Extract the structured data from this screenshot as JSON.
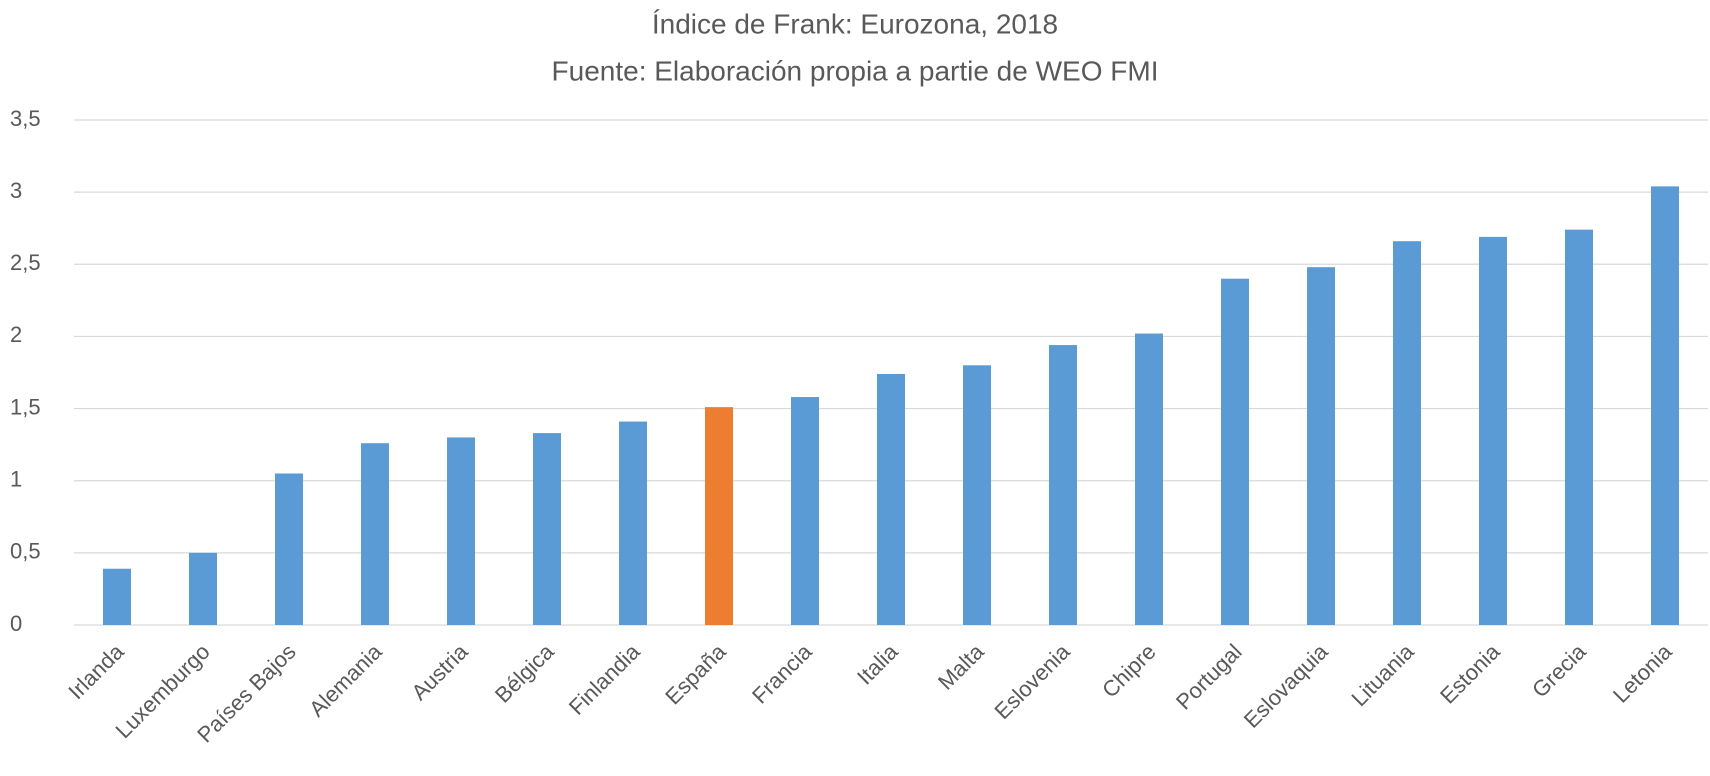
{
  "chart_data": {
    "type": "bar",
    "title": "Índice de Frank: Eurozona, 2018",
    "subtitle": "Fuente: Elaboración propia a partie de WEO FMI",
    "categories": [
      "Irlanda",
      "Luxemburgo",
      "Países Bajos",
      "Alemania",
      "Austria",
      "Bélgica",
      "Finlandia",
      "España",
      "Francia",
      "Italia",
      "Malta",
      "Eslovenia",
      "Chipre",
      "Portugal",
      "Eslovaquia",
      "Lituania",
      "Estonia",
      "Grecia",
      "Letonia"
    ],
    "values": [
      0.39,
      0.5,
      1.05,
      1.26,
      1.3,
      1.33,
      1.41,
      1.51,
      1.58,
      1.74,
      1.8,
      1.94,
      2.02,
      2.4,
      2.48,
      2.66,
      2.69,
      2.74,
      3.04
    ],
    "colors": [
      "#5b9bd5",
      "#5b9bd5",
      "#5b9bd5",
      "#5b9bd5",
      "#5b9bd5",
      "#5b9bd5",
      "#5b9bd5",
      "#ed7d31",
      "#5b9bd5",
      "#5b9bd5",
      "#5b9bd5",
      "#5b9bd5",
      "#5b9bd5",
      "#5b9bd5",
      "#5b9bd5",
      "#5b9bd5",
      "#5b9bd5",
      "#5b9bd5",
      "#5b9bd5"
    ],
    "ylim": [
      0,
      3.5
    ],
    "yticks": [
      0,
      {
        "value": 0.5,
        "label": "0,5"
      },
      1,
      {
        "value": 1.5,
        "label": "1,5"
      },
      2,
      {
        "value": 2.5,
        "label": "2,5"
      },
      3,
      {
        "value": 3.5,
        "label": "3,5"
      }
    ],
    "grid": true
  }
}
